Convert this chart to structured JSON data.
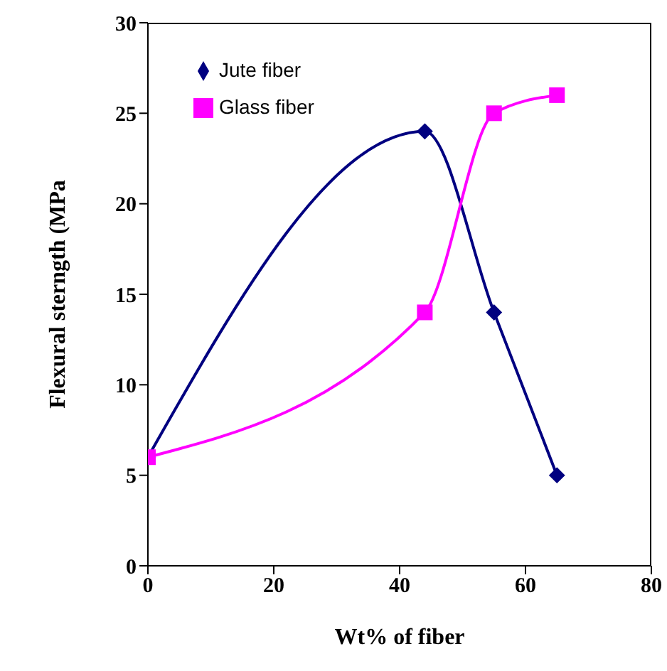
{
  "chart_data": {
    "type": "line",
    "xlabel": "Wt% of fiber",
    "ylabel": "Flexural sterngth (MPa",
    "xlim": [
      0,
      80
    ],
    "xticks": [
      0,
      20,
      40,
      60,
      80
    ],
    "ylim": [
      0,
      30
    ],
    "yticks": [
      0,
      5,
      10,
      15,
      20,
      25,
      30
    ],
    "grid": false,
    "legend": "top left",
    "line_style": "solid",
    "series": [
      {
        "name": "Jute fiber",
        "color": "#000080",
        "marker": "diamond",
        "x": [
          0,
          44,
          55,
          65
        ],
        "values": [
          6,
          24,
          14,
          5
        ]
      },
      {
        "name": "Glass fiber",
        "color": "#ff00ff",
        "marker": "square",
        "x": [
          0,
          44,
          55,
          65
        ],
        "values": [
          6,
          14,
          25,
          26
        ]
      }
    ]
  }
}
